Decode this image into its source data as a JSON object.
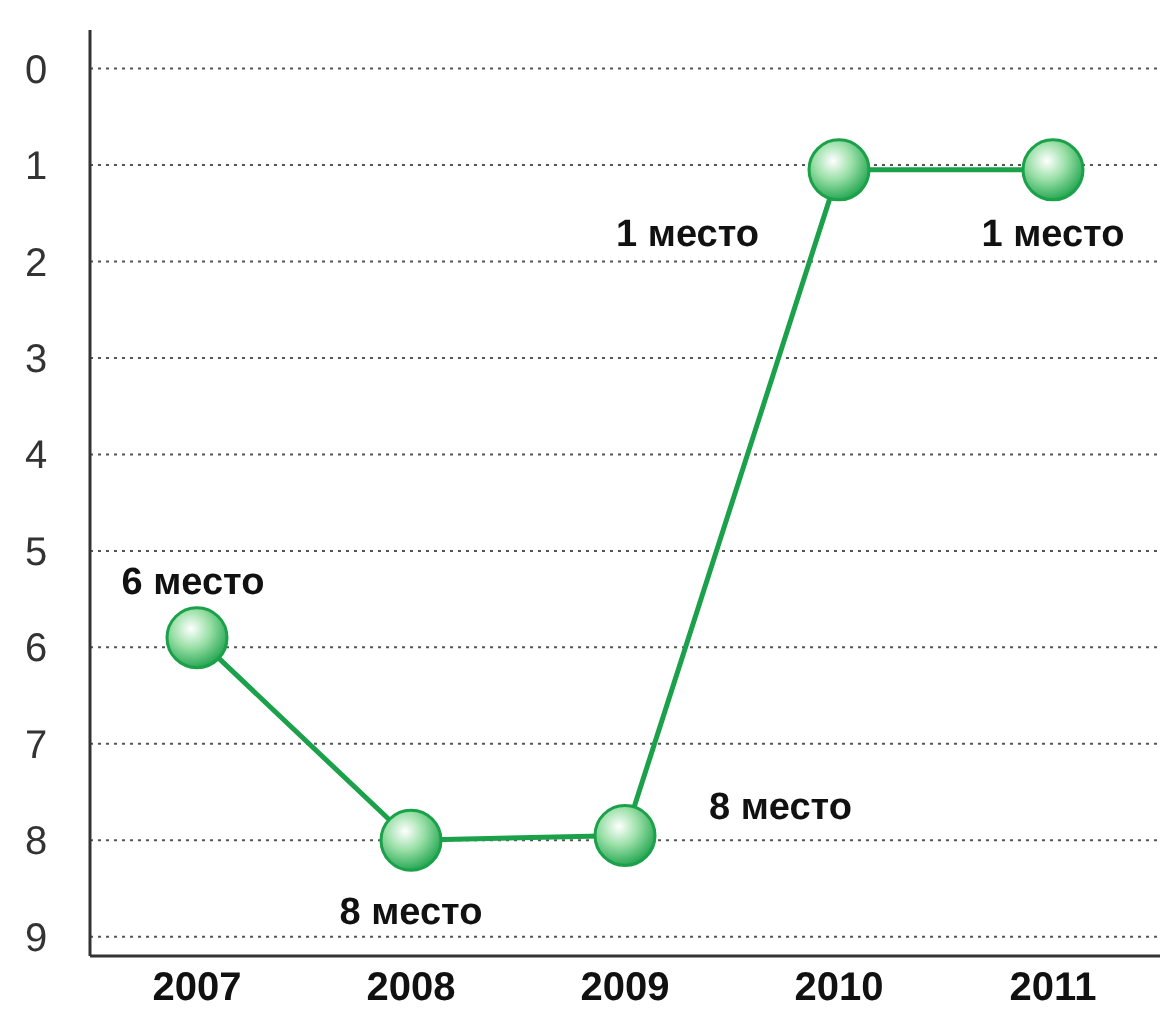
{
  "chart_data": {
    "type": "line",
    "categories": [
      "2007",
      "2008",
      "2009",
      "2010",
      "2011"
    ],
    "series": [
      {
        "color": "#1aa14a",
        "values": [
          5.9,
          8,
          7.95,
          1.05,
          1.05
        ],
        "value_labels": [
          "6 место",
          "8 место",
          "8 место",
          "1 место",
          "1 место"
        ]
      }
    ],
    "ylim": [
      9.2,
      -0.4
    ],
    "yticks": [
      0,
      1,
      2,
      3,
      4,
      5,
      6,
      7,
      8,
      9
    ],
    "grid": "y",
    "marker": "circle",
    "line_style": "solid"
  }
}
